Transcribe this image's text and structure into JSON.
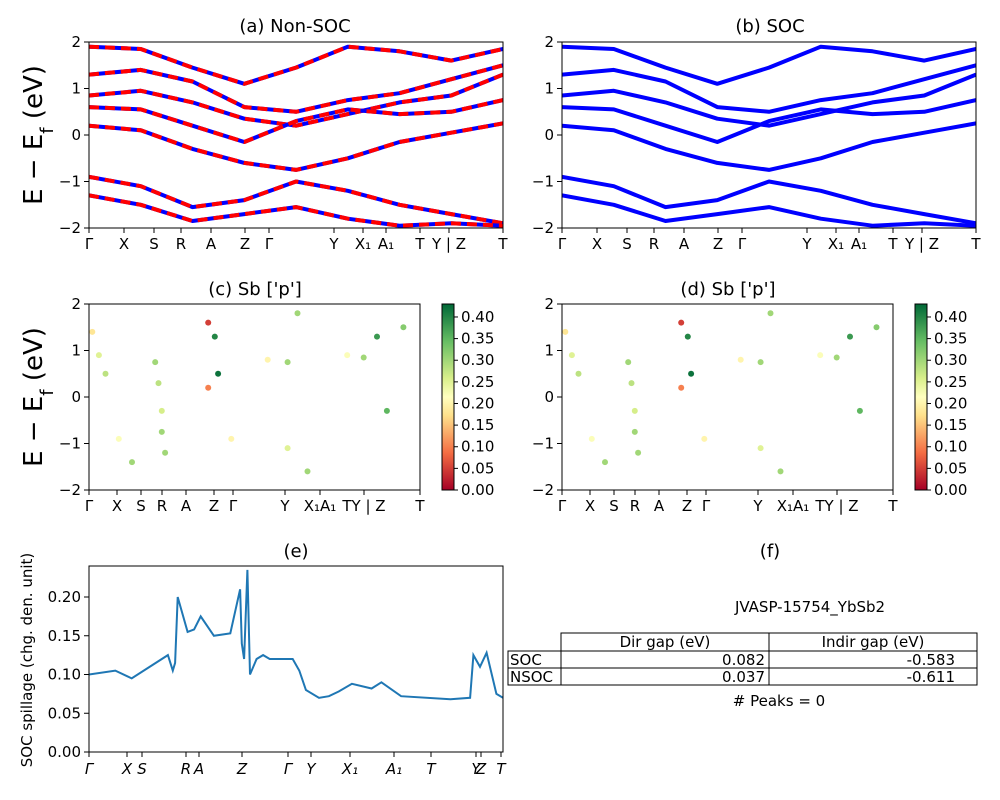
{
  "figure": {
    "table_title": "JVASP-15754_YbSb2",
    "peaks_text": "# Peaks = 0"
  },
  "chart_data": [
    {
      "id": "a",
      "type": "line",
      "title": "(a) Non-SOC",
      "ylabel": "E − E_f (eV)",
      "ylim": [
        -2,
        2
      ],
      "yticks": [
        "2",
        "1",
        "0",
        "−1",
        "−2"
      ],
      "kpath": [
        "Γ",
        "X",
        "S",
        "R",
        "A",
        "Z",
        "Γ",
        "Y",
        "X₁",
        "A₁",
        "T",
        "Y | Z",
        "T"
      ],
      "colors": {
        "soc": "#0000ff",
        "nsoc": "#ff0000"
      },
      "series": [
        {
          "values": [
            1.9,
            1.85,
            1.45,
            1.1,
            1.45,
            1.9,
            1.8,
            1.6,
            1.85
          ]
        },
        {
          "values": [
            1.3,
            1.4,
            1.15,
            0.6,
            0.5,
            0.75,
            0.9,
            1.2,
            1.5
          ]
        },
        {
          "values": [
            0.85,
            0.95,
            0.7,
            0.35,
            0.2,
            0.45,
            0.7,
            0.85,
            1.3
          ]
        },
        {
          "values": [
            0.6,
            0.55,
            0.2,
            -0.15,
            0.3,
            0.55,
            0.45,
            0.5,
            0.75
          ]
        },
        {
          "values": [
            0.2,
            0.1,
            -0.3,
            -0.6,
            -0.75,
            -0.5,
            -0.15,
            0.05,
            0.25
          ]
        },
        {
          "values": [
            -0.9,
            -1.1,
            -1.55,
            -1.4,
            -1.0,
            -1.2,
            -1.5,
            -1.7,
            -1.9
          ]
        },
        {
          "values": [
            -1.3,
            -1.5,
            -1.85,
            -1.7,
            -1.55,
            -1.8,
            -1.95,
            -1.9,
            -1.95
          ]
        }
      ]
    },
    {
      "id": "b",
      "type": "line",
      "title": "(b) SOC",
      "ylim": [
        -2,
        2
      ],
      "yticks": [
        "2",
        "1",
        "0",
        "−1",
        "−2"
      ],
      "kpath": [
        "Γ",
        "X",
        "S",
        "R",
        "A",
        "Z",
        "Γ",
        "Y",
        "X₁",
        "A₁",
        "T",
        "Y | Z",
        "T"
      ],
      "colors": {
        "soc": "#0000ff"
      },
      "series": [
        {
          "values": [
            1.9,
            1.85,
            1.45,
            1.1,
            1.45,
            1.9,
            1.8,
            1.6,
            1.85
          ]
        },
        {
          "values": [
            1.3,
            1.4,
            1.15,
            0.6,
            0.5,
            0.75,
            0.9,
            1.2,
            1.5
          ]
        },
        {
          "values": [
            0.85,
            0.95,
            0.7,
            0.35,
            0.2,
            0.45,
            0.7,
            0.85,
            1.3
          ]
        },
        {
          "values": [
            0.6,
            0.55,
            0.2,
            -0.15,
            0.3,
            0.55,
            0.45,
            0.5,
            0.75
          ]
        },
        {
          "values": [
            0.2,
            0.1,
            -0.3,
            -0.6,
            -0.75,
            -0.5,
            -0.15,
            0.05,
            0.25
          ]
        },
        {
          "values": [
            -0.9,
            -1.1,
            -1.55,
            -1.4,
            -1.0,
            -1.2,
            -1.5,
            -1.7,
            -1.9
          ]
        },
        {
          "values": [
            -1.3,
            -1.5,
            -1.85,
            -1.7,
            -1.55,
            -1.8,
            -1.95,
            -1.9,
            -1.95
          ]
        }
      ]
    },
    {
      "id": "c",
      "type": "scatter",
      "title": "(c)  Sb ['p']",
      "ylabel": "E − E_f (eV)",
      "ylim": [
        -2,
        2
      ],
      "yticks": [
        "2",
        "1",
        "0",
        "−1",
        "−2"
      ],
      "kpath": [
        "Γ",
        "X",
        "S",
        "R",
        "A",
        "Z",
        "Γ",
        "Y",
        "X₁A₁",
        "TY | Z",
        "T"
      ],
      "colorbar": {
        "min": 0.0,
        "max": 0.43,
        "ticks": [
          "0.40",
          "0.35",
          "0.30",
          "0.25",
          "0.20",
          "0.15",
          "0.10",
          "0.05",
          "0.00"
        ]
      },
      "points": [
        [
          0.1,
          1.4,
          0.18
        ],
        [
          0.3,
          0.9,
          0.25
        ],
        [
          0.5,
          0.5,
          0.28
        ],
        [
          0.9,
          -0.9,
          0.22
        ],
        [
          1.3,
          -1.4,
          0.3
        ],
        [
          2.0,
          0.75,
          0.3
        ],
        [
          2.1,
          0.3,
          0.28
        ],
        [
          2.2,
          -0.3,
          0.26
        ],
        [
          2.2,
          -0.75,
          0.3
        ],
        [
          2.3,
          -1.2,
          0.3
        ],
        [
          3.6,
          1.6,
          0.05
        ],
        [
          3.8,
          1.3,
          0.4
        ],
        [
          3.9,
          0.5,
          0.42
        ],
        [
          3.6,
          0.2,
          0.1
        ],
        [
          4.3,
          -0.9,
          0.2
        ],
        [
          5.4,
          0.8,
          0.2
        ],
        [
          6.0,
          0.75,
          0.3
        ],
        [
          6.3,
          1.8,
          0.3
        ],
        [
          6.0,
          -1.1,
          0.25
        ],
        [
          6.6,
          -1.6,
          0.3
        ],
        [
          7.8,
          0.9,
          0.22
        ],
        [
          8.3,
          0.85,
          0.3
        ],
        [
          8.7,
          1.3,
          0.38
        ],
        [
          9.0,
          -0.3,
          0.35
        ],
        [
          9.5,
          1.5,
          0.32
        ]
      ]
    },
    {
      "id": "d",
      "type": "scatter",
      "title": "(d) Sb ['p']",
      "ylim": [
        -2,
        2
      ],
      "yticks": [
        "2",
        "1",
        "0",
        "−1",
        "−2"
      ],
      "kpath": [
        "Γ",
        "X",
        "S",
        "R",
        "A",
        "Z",
        "Γ",
        "Y",
        "X₁A₁",
        "TY | Z",
        "T"
      ],
      "colorbar": {
        "min": 0.0,
        "max": 0.43,
        "ticks": [
          "0.40",
          "0.35",
          "0.30",
          "0.25",
          "0.20",
          "0.15",
          "0.10",
          "0.05",
          "0.00"
        ]
      },
      "points": [
        [
          0.1,
          1.4,
          0.18
        ],
        [
          0.3,
          0.9,
          0.25
        ],
        [
          0.5,
          0.5,
          0.28
        ],
        [
          0.9,
          -0.9,
          0.22
        ],
        [
          1.3,
          -1.4,
          0.3
        ],
        [
          2.0,
          0.75,
          0.3
        ],
        [
          2.1,
          0.3,
          0.28
        ],
        [
          2.2,
          -0.3,
          0.26
        ],
        [
          2.2,
          -0.75,
          0.3
        ],
        [
          2.3,
          -1.2,
          0.3
        ],
        [
          3.6,
          1.6,
          0.05
        ],
        [
          3.8,
          1.3,
          0.4
        ],
        [
          3.9,
          0.5,
          0.42
        ],
        [
          3.6,
          0.2,
          0.1
        ],
        [
          4.3,
          -0.9,
          0.2
        ],
        [
          5.4,
          0.8,
          0.2
        ],
        [
          6.0,
          0.75,
          0.3
        ],
        [
          6.3,
          1.8,
          0.3
        ],
        [
          6.0,
          -1.1,
          0.25
        ],
        [
          6.6,
          -1.6,
          0.3
        ],
        [
          7.8,
          0.9,
          0.22
        ],
        [
          8.3,
          0.85,
          0.3
        ],
        [
          8.7,
          1.3,
          0.38
        ],
        [
          9.0,
          -0.3,
          0.35
        ],
        [
          9.5,
          1.5,
          0.32
        ]
      ]
    },
    {
      "id": "e",
      "type": "line",
      "title": "(e)",
      "ylabel": "SOC spillage (chg. den. unit)",
      "ylim": [
        0,
        0.24
      ],
      "yticks": [
        "0.20",
        "0.15",
        "0.10",
        "0.05",
        "0.00"
      ],
      "kpath": [
        "Γ",
        "X",
        "S",
        "R",
        "A",
        "Z",
        "Γ",
        "Y",
        "X₁",
        "A₁",
        "T",
        "Y",
        "Z",
        "T"
      ],
      "color": "#1f77b4",
      "x": [
        0,
        0.8,
        1.3,
        2.4,
        2.55,
        2.62,
        2.7,
        3.0,
        3.2,
        3.4,
        3.8,
        4.3,
        4.6,
        4.65,
        4.72,
        4.82,
        4.9,
        5.1,
        5.3,
        5.5,
        6.2,
        6.4,
        6.6,
        7.0,
        7.3,
        7.6,
        8.0,
        8.6,
        8.9,
        9.5,
        11.0,
        11.6,
        11.7,
        11.9,
        12.1,
        12.4,
        12.6
      ],
      "values": [
        0.1,
        0.105,
        0.095,
        0.125,
        0.105,
        0.115,
        0.2,
        0.155,
        0.158,
        0.175,
        0.15,
        0.153,
        0.21,
        0.14,
        0.12,
        0.235,
        0.1,
        0.12,
        0.125,
        0.12,
        0.12,
        0.105,
        0.08,
        0.07,
        0.072,
        0.078,
        0.088,
        0.082,
        0.09,
        0.072,
        0.068,
        0.07,
        0.125,
        0.11,
        0.128,
        0.075,
        0.07
      ]
    }
  ],
  "table": {
    "title": "(f)",
    "headers": [
      "",
      "Dir gap (eV)",
      "Indir gap (eV)"
    ],
    "rows": [
      [
        "SOC",
        "0.082",
        "-0.583"
      ],
      [
        "NSOC",
        "0.037",
        "-0.611"
      ]
    ]
  }
}
